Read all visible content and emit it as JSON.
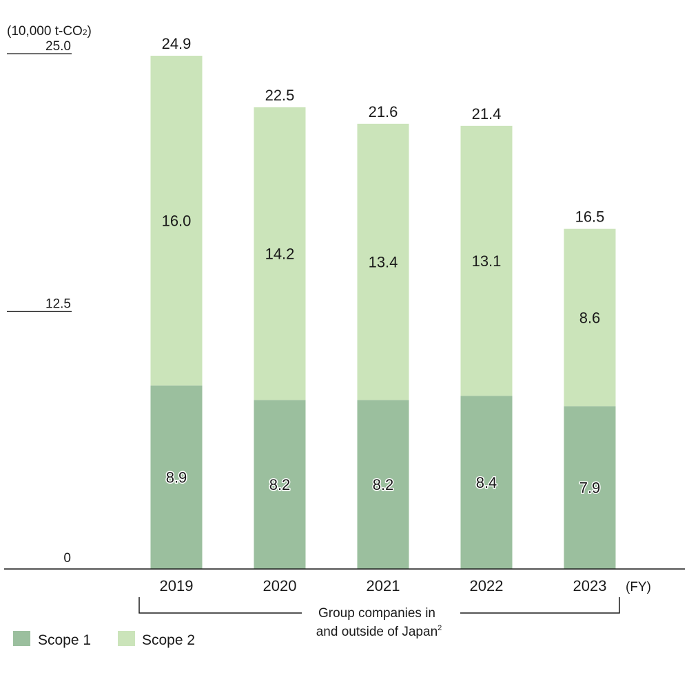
{
  "chart_data": {
    "type": "bar",
    "stacked": true,
    "unit_label": "(10,000 t-CO",
    "unit_sub": "2",
    "unit_close": ")",
    "x_suffix": "(FY)",
    "categories": [
      "2019",
      "2020",
      "2021",
      "2022",
      "2023"
    ],
    "series": [
      {
        "name": "Scope 1",
        "color": "#9bbf9e",
        "values": [
          8.9,
          8.2,
          8.2,
          8.4,
          7.9
        ],
        "labels": [
          "8.9",
          "8.2",
          "8.2",
          "8.4",
          "7.9"
        ]
      },
      {
        "name": "Scope 2",
        "color": "#cbe4ba",
        "values": [
          16.0,
          14.2,
          13.4,
          13.1,
          8.6
        ],
        "labels": [
          "16.0",
          "14.2",
          "13.4",
          "13.1",
          "8.6"
        ]
      }
    ],
    "totals": [
      "24.9",
      "22.5",
      "21.6",
      "21.4",
      "16.5"
    ],
    "y_ticks": [
      {
        "value": 0,
        "label": "0"
      },
      {
        "value": 12.5,
        "label": "12.5"
      },
      {
        "value": 25.0,
        "label": "25.0"
      }
    ],
    "ylim": [
      0,
      25.0
    ],
    "bracket_label_line1": "Group companies in",
    "bracket_label_line2": "and outside of Japan",
    "bracket_label_sup": "2",
    "legend_position": "bottom-left"
  }
}
